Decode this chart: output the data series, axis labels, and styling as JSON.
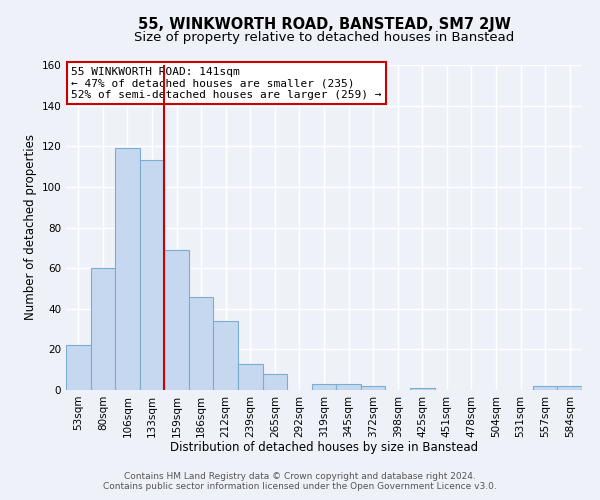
{
  "title": "55, WINKWORTH ROAD, BANSTEAD, SM7 2JW",
  "subtitle": "Size of property relative to detached houses in Banstead",
  "xlabel": "Distribution of detached houses by size in Banstead",
  "ylabel": "Number of detached properties",
  "bar_labels": [
    "53sqm",
    "80sqm",
    "106sqm",
    "133sqm",
    "159sqm",
    "186sqm",
    "212sqm",
    "239sqm",
    "265sqm",
    "292sqm",
    "319sqm",
    "345sqm",
    "372sqm",
    "398sqm",
    "425sqm",
    "451sqm",
    "478sqm",
    "504sqm",
    "531sqm",
    "557sqm",
    "584sqm"
  ],
  "bar_values": [
    22,
    60,
    119,
    113,
    69,
    46,
    34,
    13,
    8,
    0,
    3,
    3,
    2,
    0,
    1,
    0,
    0,
    0,
    0,
    2,
    2
  ],
  "bar_color": "#c5d8f0",
  "bar_edge_color": "#7aadce",
  "ylim": [
    0,
    160
  ],
  "yticks": [
    0,
    20,
    40,
    60,
    80,
    100,
    120,
    140,
    160
  ],
  "vline_x": 3.5,
  "vline_color": "#cc0000",
  "annotation_text": "55 WINKWORTH ROAD: 141sqm\n← 47% of detached houses are smaller (235)\n52% of semi-detached houses are larger (259) →",
  "annotation_box_color": "#ffffff",
  "annotation_box_edge": "#cc0000",
  "footer1": "Contains HM Land Registry data © Crown copyright and database right 2024.",
  "footer2": "Contains public sector information licensed under the Open Government Licence v3.0.",
  "bg_color": "#eef2f8",
  "grid_color": "#ffffff",
  "title_fontsize": 10.5,
  "subtitle_fontsize": 9.5,
  "axis_label_fontsize": 8.5,
  "tick_fontsize": 7.5,
  "annotation_fontsize": 8,
  "footer_fontsize": 6.5
}
